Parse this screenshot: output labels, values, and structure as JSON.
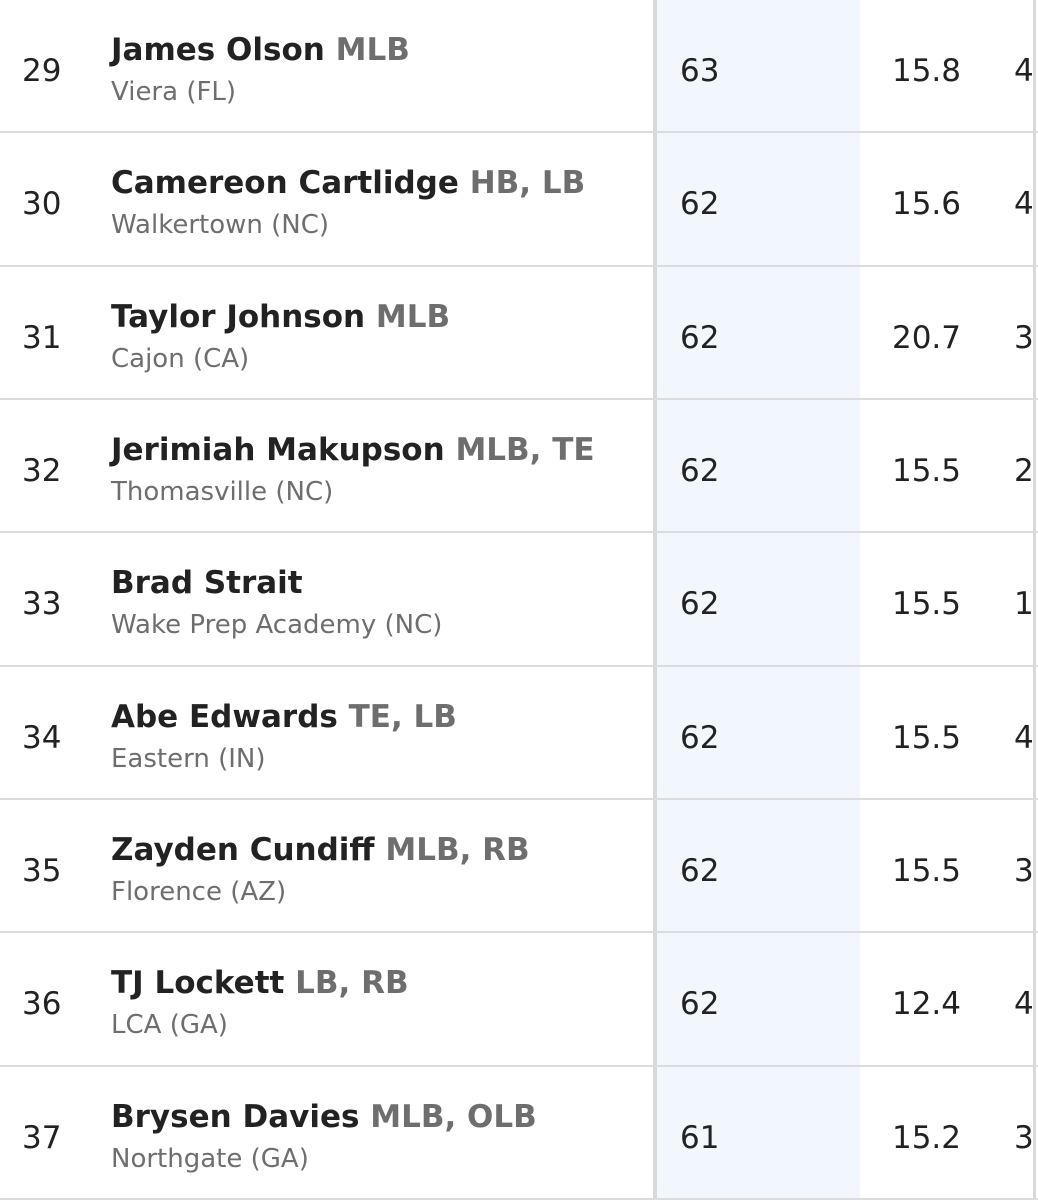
{
  "table": {
    "rows": [
      {
        "rank": 29,
        "name": "James Olson",
        "positions": "MLB",
        "school": "Viera (FL)",
        "rating": 63,
        "stat": 15.8,
        "extra": "4"
      },
      {
        "rank": 30,
        "name": "Camereon Cartlidge",
        "positions": "HB, LB",
        "school": "Walkertown (NC)",
        "rating": 62,
        "stat": 15.6,
        "extra": "4"
      },
      {
        "rank": 31,
        "name": "Taylor Johnson",
        "positions": "MLB",
        "school": "Cajon (CA)",
        "rating": 62,
        "stat": 20.7,
        "extra": "3"
      },
      {
        "rank": 32,
        "name": "Jerimiah Makupson",
        "positions": "MLB, TE",
        "school": "Thomasville (NC)",
        "rating": 62,
        "stat": 15.5,
        "extra": "2"
      },
      {
        "rank": 33,
        "name": "Brad Strait",
        "school": "Wake Prep Academy (NC)",
        "rating": 62,
        "stat": 15.5,
        "extra": "1"
      },
      {
        "rank": 34,
        "name": "Abe Edwards",
        "positions": "TE, LB",
        "school": "Eastern (IN)",
        "rating": 62,
        "stat": 15.5,
        "extra": "4"
      },
      {
        "rank": 35,
        "name": "Zayden Cundiff",
        "positions": "MLB, RB",
        "school": "Florence (AZ)",
        "rating": 62,
        "stat": 15.5,
        "extra": "3"
      },
      {
        "rank": 36,
        "name": "TJ Lockett",
        "positions": "LB, RB",
        "school": "LCA (GA)",
        "rating": 62,
        "stat": 12.4,
        "extra": "4"
      },
      {
        "rank": 37,
        "name": "Brysen Davies",
        "positions": "MLB, OLB",
        "school": "Northgate (GA)",
        "rating": 61,
        "stat": 15.2,
        "extra": "3"
      }
    ]
  }
}
